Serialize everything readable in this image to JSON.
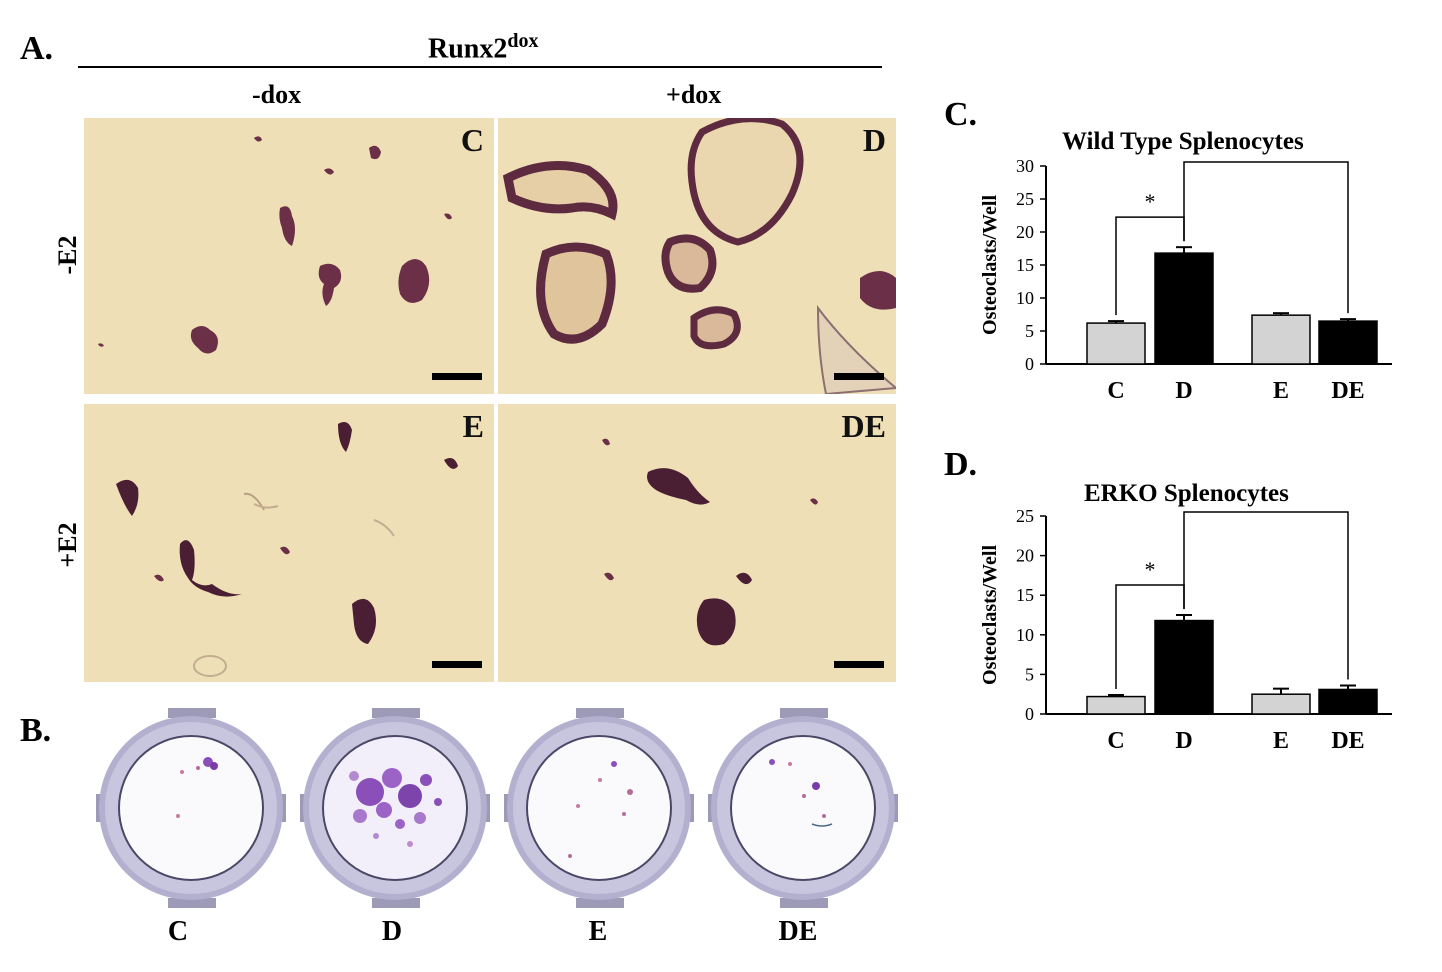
{
  "panel_labels": {
    "a": "A.",
    "b": "B.",
    "c": "C.",
    "d": "D."
  },
  "header": {
    "prefix": "Runx2",
    "superscript": "dox"
  },
  "columns": {
    "minus_dox": "-dox",
    "plus_dox": "+dox"
  },
  "rows": {
    "minus_e2": "-E2",
    "plus_e2": "+E2"
  },
  "micrographs": [
    {
      "label": "C"
    },
    {
      "label": "D"
    },
    {
      "label": "E"
    },
    {
      "label": "DE"
    }
  ],
  "dishes": [
    {
      "label": "C"
    },
    {
      "label": "D"
    },
    {
      "label": "E"
    },
    {
      "label": "DE"
    }
  ],
  "colors": {
    "micro_bg": "#efdfb7",
    "cell": "#6b3047",
    "cell_dark": "#4a1f33",
    "bar_light": "#d3d3d3",
    "bar_dark": "#000000",
    "dish_rim": "#b3b0cf",
    "dish_stain": "#8a4fb8"
  },
  "chart_data": [
    {
      "type": "bar",
      "title": "Wild Type Splenocytes",
      "ylabel": "Osteoclasts/Well",
      "categories": [
        "C",
        "D",
        "E",
        "DE"
      ],
      "values": [
        6.2,
        16.8,
        7.4,
        6.5
      ],
      "errors": [
        0.3,
        0.9,
        0.3,
        0.3
      ],
      "bar_colors": [
        "#d3d3d3",
        "#000000",
        "#d3d3d3",
        "#000000"
      ],
      "ylim": [
        0,
        30
      ],
      "yticks": [
        "0",
        "5",
        "10",
        "15",
        "20",
        "25",
        "30"
      ],
      "significance": [
        {
          "from": 0,
          "to": 1,
          "label": "*"
        },
        {
          "from": 1,
          "to": 3,
          "label": "*"
        }
      ]
    },
    {
      "type": "bar",
      "title": "ERKO Splenocytes",
      "ylabel": "Osteoclasts/Well",
      "categories": [
        "C",
        "D",
        "E",
        "DE"
      ],
      "values": [
        2.2,
        11.8,
        2.5,
        3.1
      ],
      "errors": [
        0.2,
        0.7,
        0.7,
        0.5
      ],
      "bar_colors": [
        "#d3d3d3",
        "#000000",
        "#d3d3d3",
        "#000000"
      ],
      "ylim": [
        0,
        25
      ],
      "yticks": [
        "0",
        "5",
        "10",
        "15",
        "20",
        "25"
      ],
      "significance": [
        {
          "from": 0,
          "to": 1,
          "label": "*"
        },
        {
          "from": 1,
          "to": 3,
          "label": "*"
        }
      ]
    }
  ]
}
